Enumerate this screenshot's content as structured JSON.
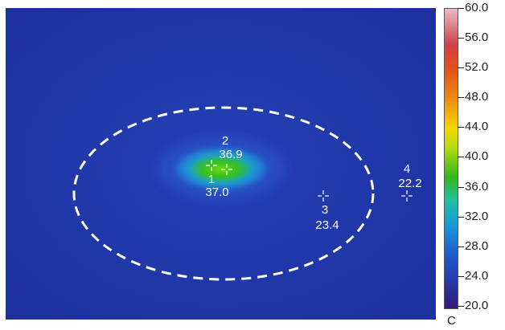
{
  "thermal_image": {
    "spots": [
      {
        "id": "1",
        "temperature": "37.0"
      },
      {
        "id": "2",
        "temperature": "36.9"
      },
      {
        "id": "3",
        "temperature": "23.4"
      },
      {
        "id": "4",
        "temperature": "22.2"
      }
    ]
  },
  "colorbar": {
    "ticks": [
      "60.0",
      "56.0",
      "52.0",
      "48.0",
      "44.0",
      "40.0",
      "36.0",
      "32.0",
      "28.0",
      "24.0",
      "20.0"
    ],
    "unit": "C",
    "range": [
      20.0,
      60.0
    ]
  },
  "colors": {
    "background": "#1f34a8",
    "hotspot_core": "#2ec21c",
    "dashed_ellipse": "#ffffff"
  }
}
